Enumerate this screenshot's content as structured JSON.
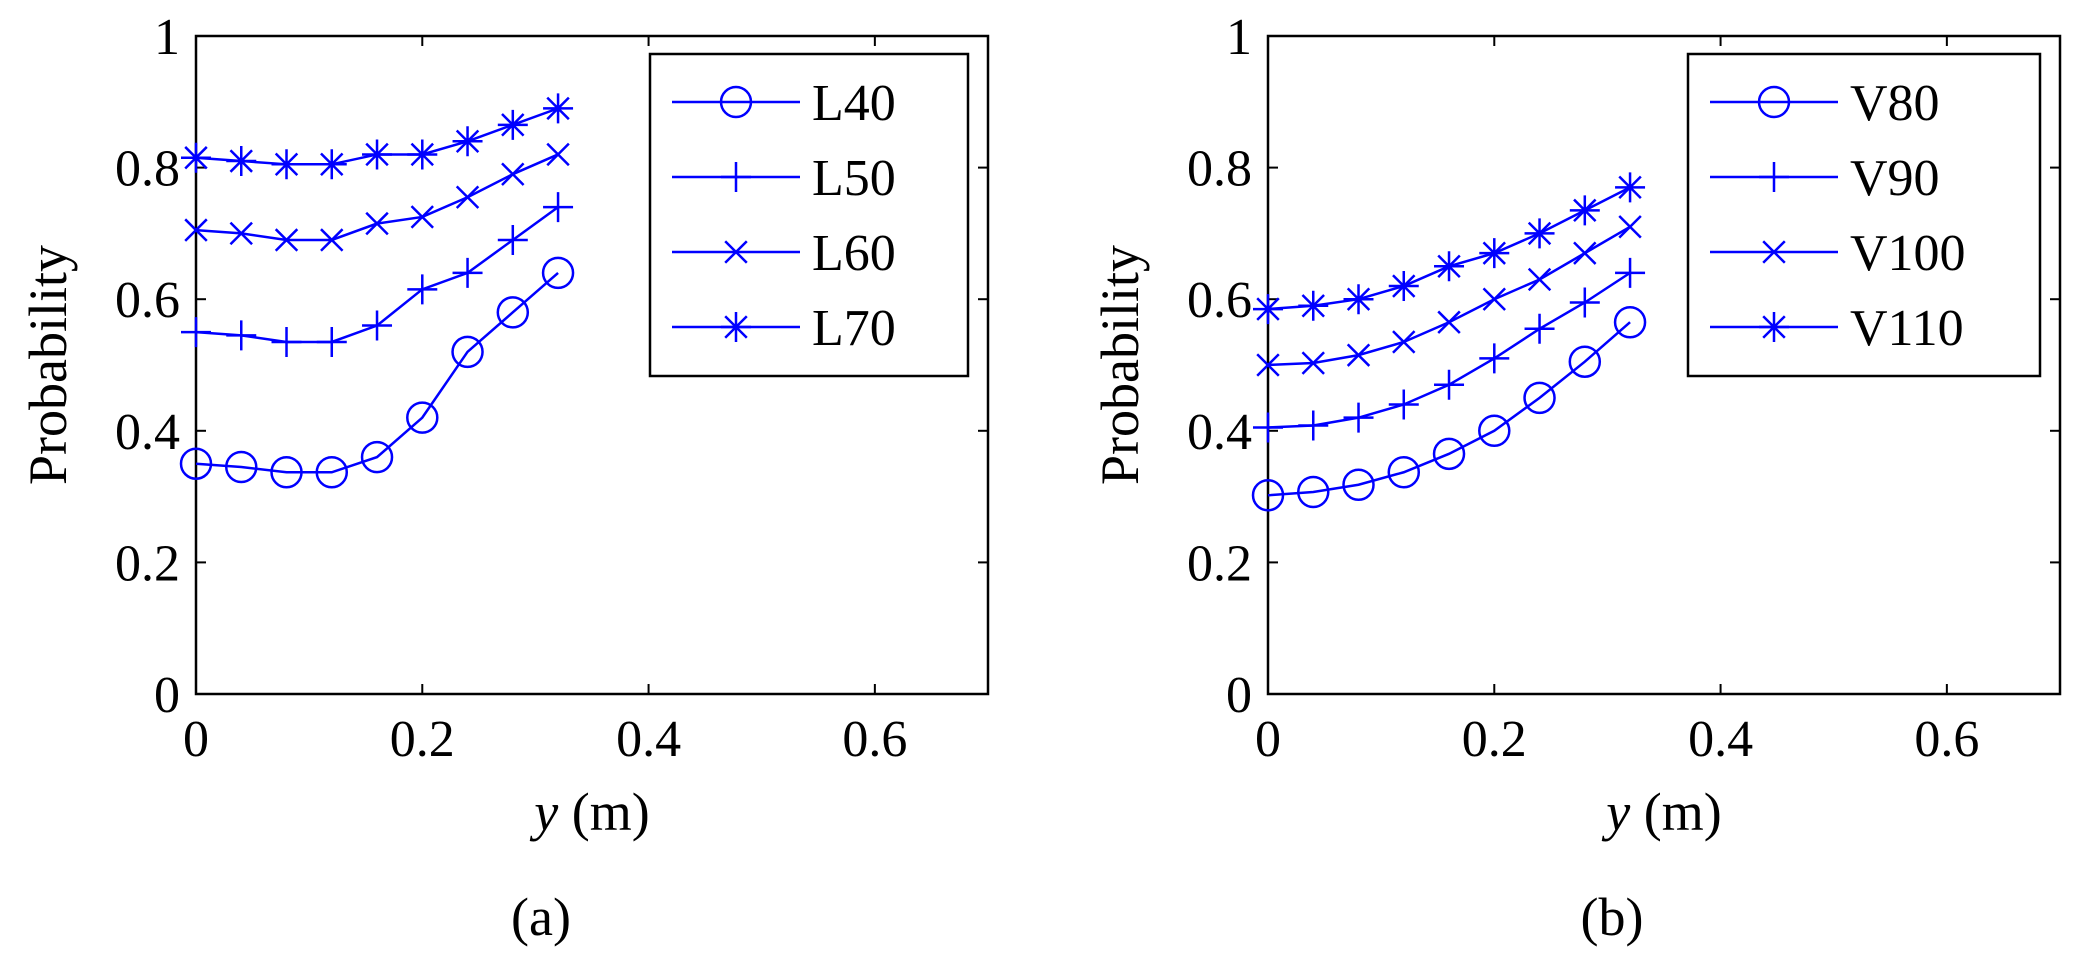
{
  "line_color": "#0000ff",
  "chart_data": [
    {
      "type": "line",
      "caption": "(a)",
      "xlabel": "y",
      "xlabel_unit": " (m)",
      "ylabel": "Probability",
      "xlim": [
        0,
        0.7
      ],
      "ylim": [
        0,
        1
      ],
      "xticks": [
        0,
        0.2,
        0.4,
        0.6
      ],
      "xtick_labels": [
        "0",
        "0.2",
        "0.4",
        "0.6"
      ],
      "yticks": [
        0,
        0.2,
        0.4,
        0.6,
        0.8,
        1
      ],
      "ytick_labels": [
        "0",
        "0.2",
        "0.4",
        "0.6",
        "0.8",
        "1"
      ],
      "legend_position": "top-right",
      "x": [
        0,
        0.04,
        0.08,
        0.12,
        0.16,
        0.2,
        0.24,
        0.28,
        0.32
      ],
      "series": [
        {
          "name": "L40",
          "marker": "circle",
          "values": [
            0.35,
            0.345,
            0.337,
            0.337,
            0.36,
            0.42,
            0.52,
            0.58,
            0.64
          ]
        },
        {
          "name": "L50",
          "marker": "plus",
          "values": [
            0.55,
            0.545,
            0.535,
            0.535,
            0.56,
            0.615,
            0.64,
            0.69,
            0.74
          ]
        },
        {
          "name": "L60",
          "marker": "x",
          "values": [
            0.705,
            0.7,
            0.69,
            0.69,
            0.715,
            0.725,
            0.755,
            0.79,
            0.82
          ]
        },
        {
          "name": "L70",
          "marker": "star",
          "values": [
            0.815,
            0.81,
            0.805,
            0.805,
            0.82,
            0.82,
            0.84,
            0.865,
            0.89
          ]
        }
      ]
    },
    {
      "type": "line",
      "caption": "(b)",
      "xlabel": "y",
      "xlabel_unit": " (m)",
      "ylabel": "Probability",
      "xlim": [
        0,
        0.7
      ],
      "ylim": [
        0,
        1
      ],
      "xticks": [
        0,
        0.2,
        0.4,
        0.6
      ],
      "xtick_labels": [
        "0",
        "0.2",
        "0.4",
        "0.6"
      ],
      "yticks": [
        0,
        0.2,
        0.4,
        0.6,
        0.8,
        1
      ],
      "ytick_labels": [
        "0",
        "0.2",
        "0.4",
        "0.6",
        "0.8",
        "1"
      ],
      "legend_position": "top-right",
      "x": [
        0,
        0.04,
        0.08,
        0.12,
        0.16,
        0.2,
        0.24,
        0.28,
        0.32
      ],
      "series": [
        {
          "name": "V80",
          "marker": "circle",
          "values": [
            0.302,
            0.307,
            0.318,
            0.337,
            0.365,
            0.4,
            0.45,
            0.505,
            0.565
          ]
        },
        {
          "name": "V90",
          "marker": "plus",
          "values": [
            0.405,
            0.408,
            0.42,
            0.44,
            0.47,
            0.51,
            0.555,
            0.595,
            0.64
          ]
        },
        {
          "name": "V100",
          "marker": "x",
          "values": [
            0.5,
            0.503,
            0.515,
            0.535,
            0.565,
            0.6,
            0.63,
            0.67,
            0.71
          ]
        },
        {
          "name": "V110",
          "marker": "star",
          "values": [
            0.585,
            0.59,
            0.6,
            0.62,
            0.65,
            0.67,
            0.7,
            0.735,
            0.77
          ]
        }
      ]
    }
  ]
}
